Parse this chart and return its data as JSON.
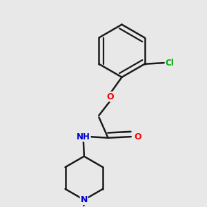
{
  "bg_color": "#e8e8e8",
  "bond_color": "#1a1a1a",
  "atom_colors": {
    "O": "#ff0000",
    "N": "#0000cc",
    "Cl": "#00aa00",
    "H": "#556655"
  },
  "bond_width": 1.8,
  "dbo": 0.018
}
